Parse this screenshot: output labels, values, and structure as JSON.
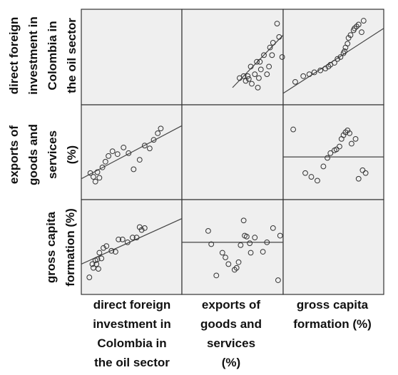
{
  "chart_data": {
    "type": "scatter",
    "variables": [
      [
        "direct foreign",
        "investment in",
        "Colombia in",
        "the oil sector"
      ],
      [
        "exports of",
        "goods and",
        "services",
        "(%)"
      ],
      [
        "gross capita",
        "formation (%)"
      ]
    ],
    "row_labels": [
      [
        "direct foreign",
        "investment in",
        "Colombia in",
        "the oil sector"
      ],
      [
        "exports of",
        "goods and",
        "services",
        "(%)"
      ],
      [
        "gross capita",
        "formation (%)"
      ]
    ],
    "col_labels": [
      [
        "direct foreign",
        "investment in",
        "Colombia in",
        "the oil sector"
      ],
      [
        "exports of",
        "goods and",
        "services",
        "(%)"
      ],
      [
        "gross capita",
        "formation (%)"
      ]
    ],
    "panels": [
      {
        "row": 0,
        "col": 1,
        "x": [
          0.57,
          0.61,
          0.63,
          0.65,
          0.66,
          0.68,
          0.69,
          0.72,
          0.74,
          0.75,
          0.76,
          0.77,
          0.78,
          0.81,
          0.84,
          0.86,
          0.87,
          0.89,
          0.9,
          0.94,
          0.96,
          0.99
        ],
        "y": [
          0.72,
          0.7,
          0.75,
          0.7,
          0.73,
          0.6,
          0.78,
          0.68,
          0.55,
          0.82,
          0.72,
          0.55,
          0.63,
          0.48,
          0.68,
          0.6,
          0.4,
          0.48,
          0.35,
          0.15,
          0.29,
          0.5
        ],
        "trend": [
          [
            0.5,
            0.82
          ],
          [
            1.0,
            0.27
          ]
        ]
      },
      {
        "row": 0,
        "col": 2,
        "x": [
          0.12,
          0.2,
          0.26,
          0.31,
          0.37,
          0.42,
          0.45,
          0.47,
          0.51,
          0.54,
          0.57,
          0.6,
          0.61,
          0.62,
          0.64,
          0.65,
          0.67,
          0.7,
          0.71,
          0.73,
          0.75,
          0.78,
          0.8
        ],
        "y": [
          0.76,
          0.7,
          0.68,
          0.66,
          0.64,
          0.62,
          0.6,
          0.58,
          0.56,
          0.52,
          0.5,
          0.46,
          0.44,
          0.4,
          0.36,
          0.3,
          0.27,
          0.22,
          0.2,
          0.18,
          0.16,
          0.24,
          0.12
        ],
        "trend": [
          [
            0.0,
            0.88
          ],
          [
            1.0,
            0.2
          ]
        ]
      },
      {
        "row": 1,
        "col": 0,
        "x": [
          0.09,
          0.12,
          0.14,
          0.16,
          0.18,
          0.21,
          0.24,
          0.27,
          0.31,
          0.36,
          0.42,
          0.47,
          0.52,
          0.58,
          0.63,
          0.68,
          0.72,
          0.76,
          0.79
        ],
        "y": [
          0.72,
          0.76,
          0.81,
          0.71,
          0.77,
          0.66,
          0.6,
          0.54,
          0.49,
          0.52,
          0.45,
          0.51,
          0.68,
          0.58,
          0.43,
          0.46,
          0.37,
          0.3,
          0.25
        ],
        "trend": [
          [
            0.0,
            0.78
          ],
          [
            1.0,
            0.22
          ]
        ]
      },
      {
        "row": 1,
        "col": 2,
        "x": [
          0.1,
          0.22,
          0.28,
          0.34,
          0.4,
          0.44,
          0.47,
          0.51,
          0.53,
          0.56,
          0.58,
          0.6,
          0.62,
          0.64,
          0.66,
          0.68,
          0.72,
          0.75,
          0.79,
          0.82
        ],
        "y": [
          0.26,
          0.72,
          0.76,
          0.8,
          0.65,
          0.56,
          0.51,
          0.48,
          0.47,
          0.44,
          0.36,
          0.32,
          0.29,
          0.27,
          0.3,
          0.41,
          0.36,
          0.78,
          0.69,
          0.72
        ],
        "trend": [
          [
            0.0,
            0.55
          ],
          [
            1.0,
            0.55
          ]
        ]
      },
      {
        "row": 2,
        "col": 0,
        "x": [
          0.08,
          0.11,
          0.12,
          0.14,
          0.15,
          0.16,
          0.17,
          0.18,
          0.2,
          0.22,
          0.25,
          0.3,
          0.34,
          0.37,
          0.41,
          0.46,
          0.51,
          0.55,
          0.58,
          0.6,
          0.63
        ],
        "y": [
          0.82,
          0.68,
          0.72,
          0.64,
          0.68,
          0.63,
          0.73,
          0.56,
          0.62,
          0.51,
          0.49,
          0.54,
          0.55,
          0.42,
          0.42,
          0.45,
          0.4,
          0.4,
          0.29,
          0.32,
          0.3
        ],
        "trend": [
          [
            0.0,
            0.68
          ],
          [
            1.0,
            0.2
          ]
        ]
      },
      {
        "row": 2,
        "col": 1,
        "x": [
          0.26,
          0.29,
          0.34,
          0.4,
          0.43,
          0.46,
          0.52,
          0.54,
          0.56,
          0.58,
          0.61,
          0.62,
          0.64,
          0.67,
          0.68,
          0.72,
          0.8,
          0.84,
          0.9,
          0.95,
          0.97
        ],
        "y": [
          0.33,
          0.47,
          0.8,
          0.56,
          0.61,
          0.68,
          0.74,
          0.72,
          0.66,
          0.48,
          0.22,
          0.38,
          0.39,
          0.46,
          0.56,
          0.4,
          0.55,
          0.45,
          0.3,
          0.85,
          0.38
        ],
        "trend": [
          [
            0.0,
            0.45
          ],
          [
            1.0,
            0.45
          ]
        ]
      }
    ]
  }
}
